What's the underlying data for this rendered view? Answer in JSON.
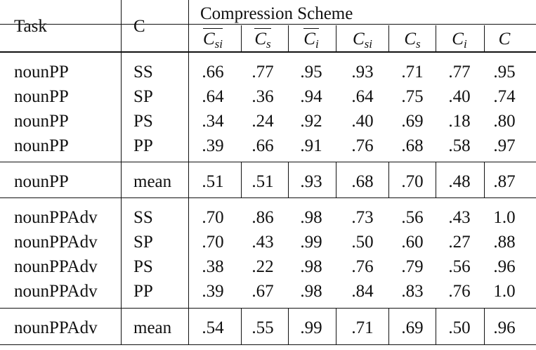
{
  "header": {
    "task": "Task",
    "c": "C",
    "scheme_group": "Compression Scheme",
    "schemes": [
      {
        "base": "C",
        "sub": "si",
        "overline": true
      },
      {
        "base": "C",
        "sub": "s",
        "overline": true
      },
      {
        "base": "C",
        "sub": "i",
        "overline": true
      },
      {
        "base": "C",
        "sub": "si",
        "overline": false
      },
      {
        "base": "C",
        "sub": "s",
        "overline": false
      },
      {
        "base": "C",
        "sub": "i",
        "overline": false
      },
      {
        "base": "C",
        "sub": "",
        "overline": false
      }
    ]
  },
  "groups": [
    {
      "rows": [
        {
          "task": "nounPP",
          "c": "SS",
          "values": [
            ".66",
            ".77",
            ".95",
            ".93",
            ".71",
            ".77",
            ".95"
          ]
        },
        {
          "task": "nounPP",
          "c": "SP",
          "values": [
            ".64",
            ".36",
            ".94",
            ".64",
            ".75",
            ".40",
            ".74"
          ]
        },
        {
          "task": "nounPP",
          "c": "PS",
          "values": [
            ".34",
            ".24",
            ".92",
            ".40",
            ".69",
            ".18",
            ".80"
          ]
        },
        {
          "task": "nounPP",
          "c": "PP",
          "values": [
            ".39",
            ".66",
            ".91",
            ".76",
            ".68",
            ".58",
            ".97"
          ]
        }
      ],
      "mean": {
        "task": "nounPP",
        "c": "mean",
        "values": [
          ".51",
          ".51",
          ".93",
          ".68",
          ".70",
          ".48",
          ".87"
        ]
      }
    },
    {
      "rows": [
        {
          "task": "nounPPAdv",
          "c": "SS",
          "values": [
            ".70",
            ".86",
            ".98",
            ".73",
            ".56",
            ".43",
            "1.0"
          ]
        },
        {
          "task": "nounPPAdv",
          "c": "SP",
          "values": [
            ".70",
            ".43",
            ".99",
            ".50",
            ".60",
            ".27",
            ".88"
          ]
        },
        {
          "task": "nounPPAdv",
          "c": "PS",
          "values": [
            ".38",
            ".22",
            ".98",
            ".76",
            ".79",
            ".56",
            ".96"
          ]
        },
        {
          "task": "nounPPAdv",
          "c": "PP",
          "values": [
            ".39",
            ".67",
            ".98",
            ".84",
            ".83",
            ".76",
            "1.0"
          ]
        }
      ],
      "mean": {
        "task": "nounPPAdv",
        "c": "mean",
        "values": [
          ".54",
          ".55",
          ".99",
          ".71",
          ".69",
          ".50",
          ".96"
        ]
      }
    }
  ]
}
